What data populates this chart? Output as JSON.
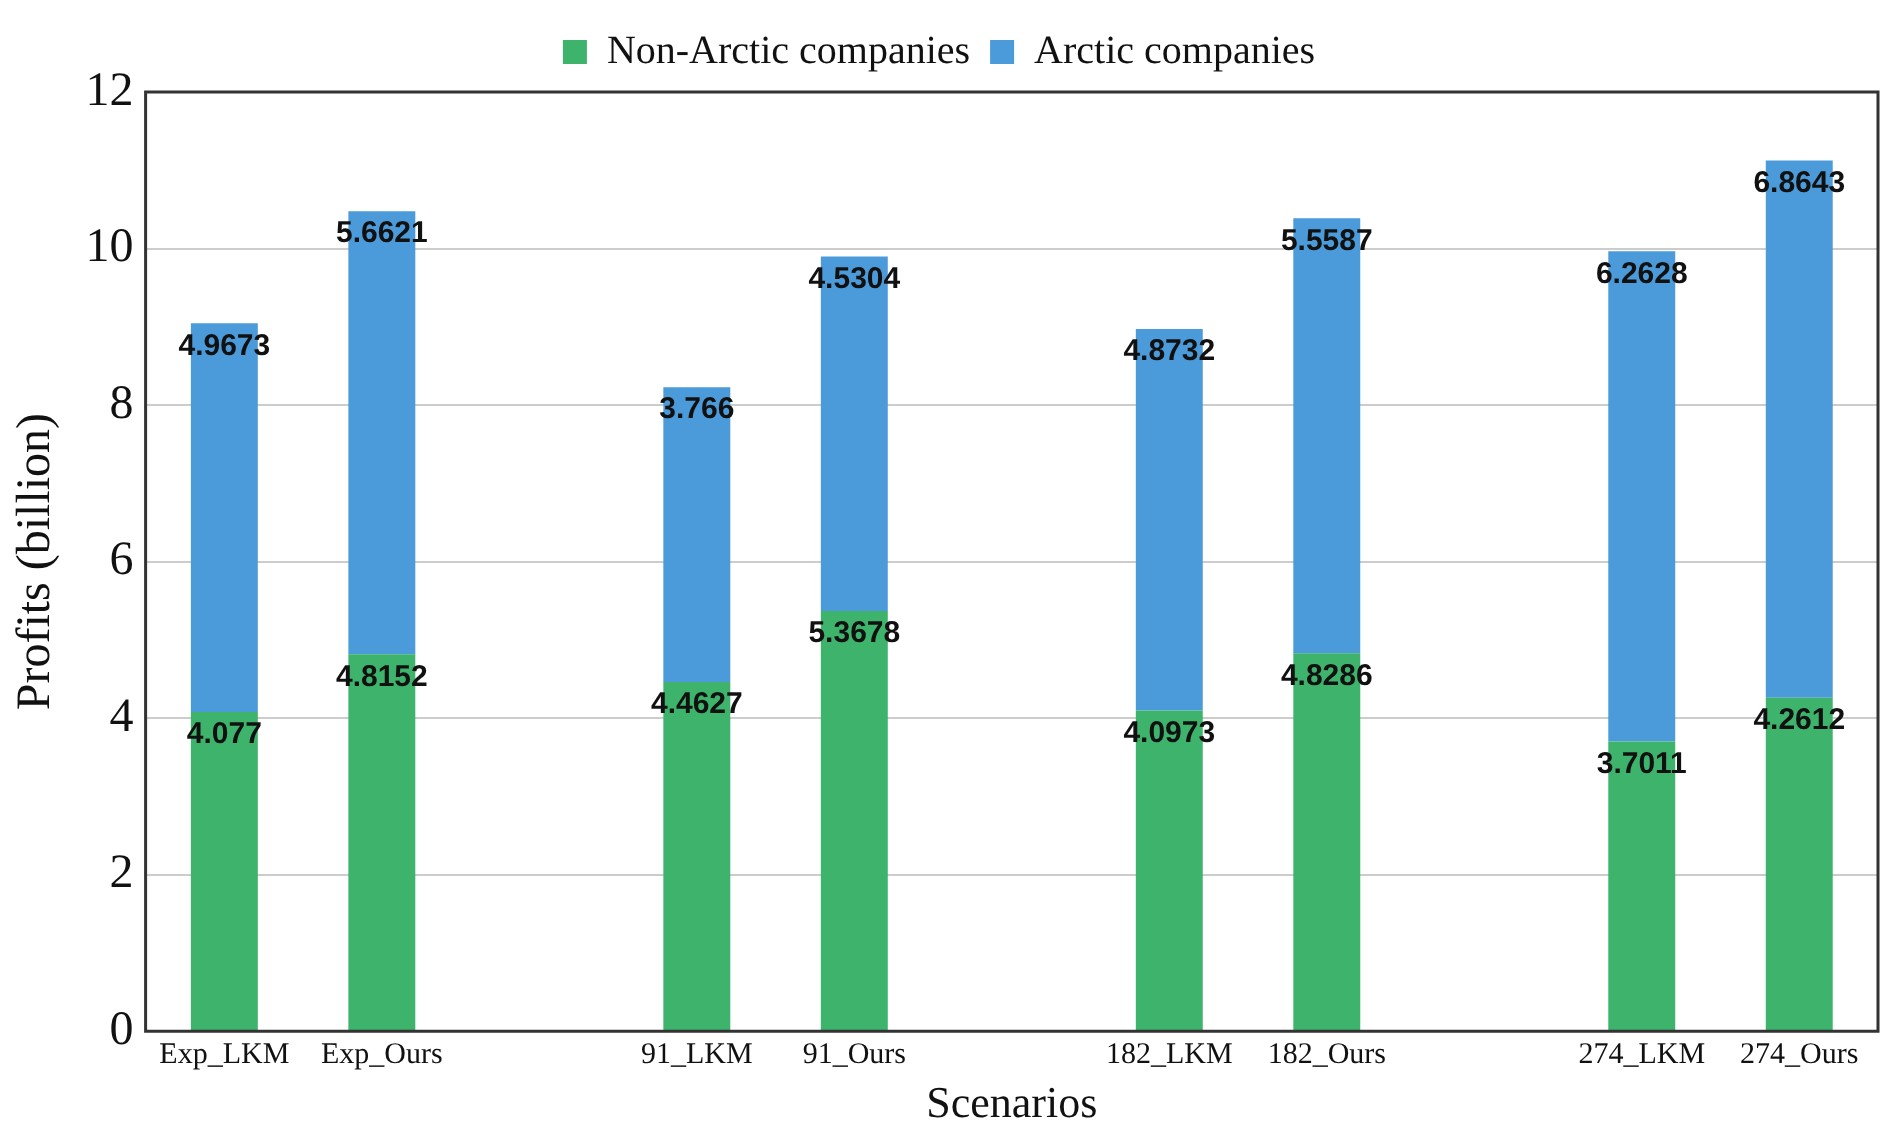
{
  "chart_data": {
    "type": "bar",
    "stacked": true,
    "xlabel": "Scenarios",
    "ylabel": "Profits (billion)",
    "categories": [
      "Exp_LKM",
      "Exp_Ours",
      null,
      "91_LKM",
      "91_Ours",
      null,
      "182_LKM",
      "182_Ours",
      null,
      "274_LKM",
      "274_Ours"
    ],
    "series": [
      {
        "name": "Non-Arctic companies",
        "color": "#3db36b",
        "values": [
          4.077,
          4.8152,
          null,
          4.4627,
          5.3678,
          null,
          4.0973,
          4.8286,
          null,
          3.7011,
          4.2612
        ]
      },
      {
        "name": "Arctic companies",
        "color": "#4b9ad9",
        "values": [
          4.9673,
          5.6621,
          null,
          3.766,
          4.5304,
          null,
          4.8732,
          5.5587,
          null,
          6.2628,
          6.8643
        ]
      }
    ],
    "ylim": [
      0,
      12
    ],
    "yticks": [
      0,
      2,
      4,
      6,
      8,
      10,
      12
    ],
    "grid": "y",
    "legend": "top",
    "data_labels": true
  }
}
